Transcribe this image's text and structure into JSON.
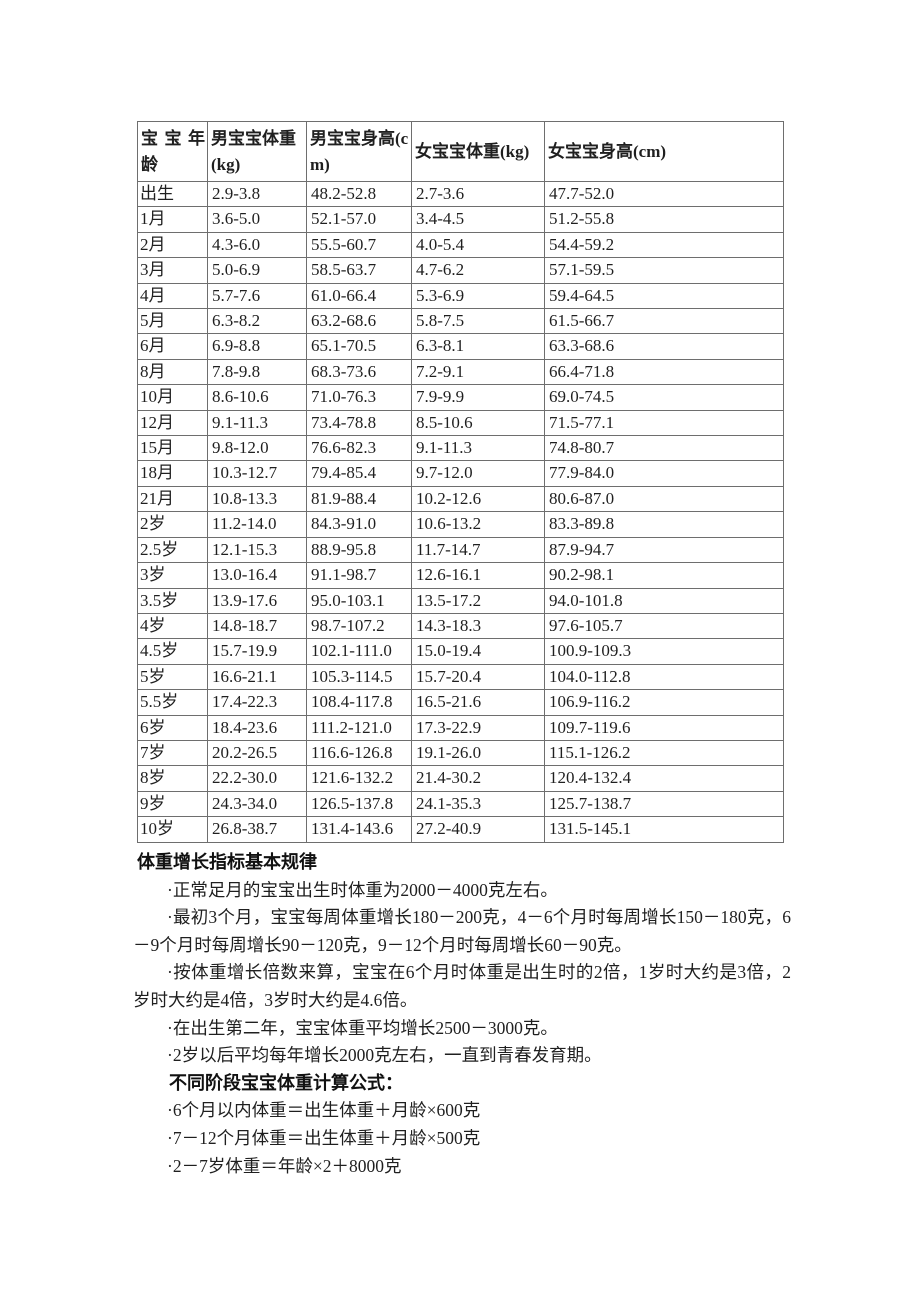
{
  "colors": {
    "page_bg": "#ffffff",
    "text": "#1f1f1f",
    "table_border": "#6e6e6e"
  },
  "table": {
    "headers": [
      "宝宝年龄",
      "男宝宝体重(kg)",
      "男宝宝身高(cm)",
      "女宝宝体重(kg)",
      "女宝宝身高(cm)"
    ],
    "rows": [
      [
        "出生",
        "2.9-3.8",
        "48.2-52.8",
        "2.7-3.6",
        "47.7-52.0"
      ],
      [
        "1月",
        "3.6-5.0",
        "52.1-57.0",
        "3.4-4.5",
        "51.2-55.8"
      ],
      [
        "2月",
        "4.3-6.0",
        "55.5-60.7",
        "4.0-5.4",
        "54.4-59.2"
      ],
      [
        "3月",
        "5.0-6.9",
        "58.5-63.7",
        "4.7-6.2",
        "57.1-59.5"
      ],
      [
        "4月",
        "5.7-7.6",
        "61.0-66.4",
        "5.3-6.9",
        "59.4-64.5"
      ],
      [
        "5月",
        "6.3-8.2",
        "63.2-68.6",
        "5.8-7.5",
        "61.5-66.7"
      ],
      [
        "6月",
        "6.9-8.8",
        "65.1-70.5",
        "6.3-8.1",
        "63.3-68.6"
      ],
      [
        "8月",
        "7.8-9.8",
        "68.3-73.6",
        "7.2-9.1",
        "66.4-71.8"
      ],
      [
        "10月",
        "8.6-10.6",
        "71.0-76.3",
        "7.9-9.9",
        "69.0-74.5"
      ],
      [
        "12月",
        "9.1-11.3",
        "73.4-78.8",
        "8.5-10.6",
        "71.5-77.1"
      ],
      [
        "15月",
        "9.8-12.0",
        "76.6-82.3",
        "9.1-11.3",
        "74.8-80.7"
      ],
      [
        "18月",
        "10.3-12.7",
        "79.4-85.4",
        "9.7-12.0",
        "77.9-84.0"
      ],
      [
        "21月",
        "10.8-13.3",
        "81.9-88.4",
        "10.2-12.6",
        "80.6-87.0"
      ],
      [
        "2岁",
        "11.2-14.0",
        "84.3-91.0",
        "10.6-13.2",
        "83.3-89.8"
      ],
      [
        "2.5岁",
        "12.1-15.3",
        "88.9-95.8",
        "11.7-14.7",
        "87.9-94.7"
      ],
      [
        "3岁",
        "13.0-16.4",
        "91.1-98.7",
        "12.6-16.1",
        "90.2-98.1"
      ],
      [
        "3.5岁",
        "13.9-17.6",
        "95.0-103.1",
        "13.5-17.2",
        "94.0-101.8"
      ],
      [
        "4岁",
        "14.8-18.7",
        "98.7-107.2",
        "14.3-18.3",
        "97.6-105.7"
      ],
      [
        "4.5岁",
        "15.7-19.9",
        "102.1-111.0",
        "15.0-19.4",
        "100.9-109.3"
      ],
      [
        "5岁",
        "16.6-21.1",
        "105.3-114.5",
        "15.7-20.4",
        "104.0-112.8"
      ],
      [
        "5.5岁",
        "17.4-22.3",
        "108.4-117.8",
        "16.5-21.6",
        "106.9-116.2"
      ],
      [
        "6岁",
        "18.4-23.6",
        "111.2-121.0",
        "17.3-22.9",
        "109.7-119.6"
      ],
      [
        "7岁",
        "20.2-26.5",
        "116.6-126.8",
        "19.1-26.0",
        "115.1-126.2"
      ],
      [
        "8岁",
        "22.2-30.0",
        "121.6-132.2",
        "21.4-30.2",
        "120.4-132.4"
      ],
      [
        "9岁",
        "24.3-34.0",
        "126.5-137.8",
        "24.1-35.3",
        "125.7-138.7"
      ],
      [
        "10岁",
        "26.8-38.7",
        "131.4-143.6",
        "27.2-40.9",
        "131.5-145.1"
      ]
    ]
  },
  "notes": {
    "heading1": "体重增长指标基本规律",
    "bullets1": [
      "·正常足月的宝宝出生时体重为2000－4000克左右。",
      "·最初3个月，宝宝每周体重增长180－200克，4－6个月时每周增长150－180克，6－9个月时每周增长90－120克，9－12个月时每周增长60－90克。",
      "·按体重增长倍数来算，宝宝在6个月时体重是出生时的2倍，1岁时大约是3倍，2岁时大约是4倍，3岁时大约是4.6倍。",
      "·在出生第二年，宝宝体重平均增长2500－3000克。",
      "·2岁以后平均每年增长2000克左右，一直到青春发育期。"
    ],
    "heading2": "不同阶段宝宝体重计算公式：",
    "bullets2": [
      "·6个月以内体重＝出生体重＋月龄×600克",
      "·7－12个月体重＝出生体重＋月龄×500克",
      "·2－7岁体重＝年龄×2＋8000克"
    ]
  }
}
